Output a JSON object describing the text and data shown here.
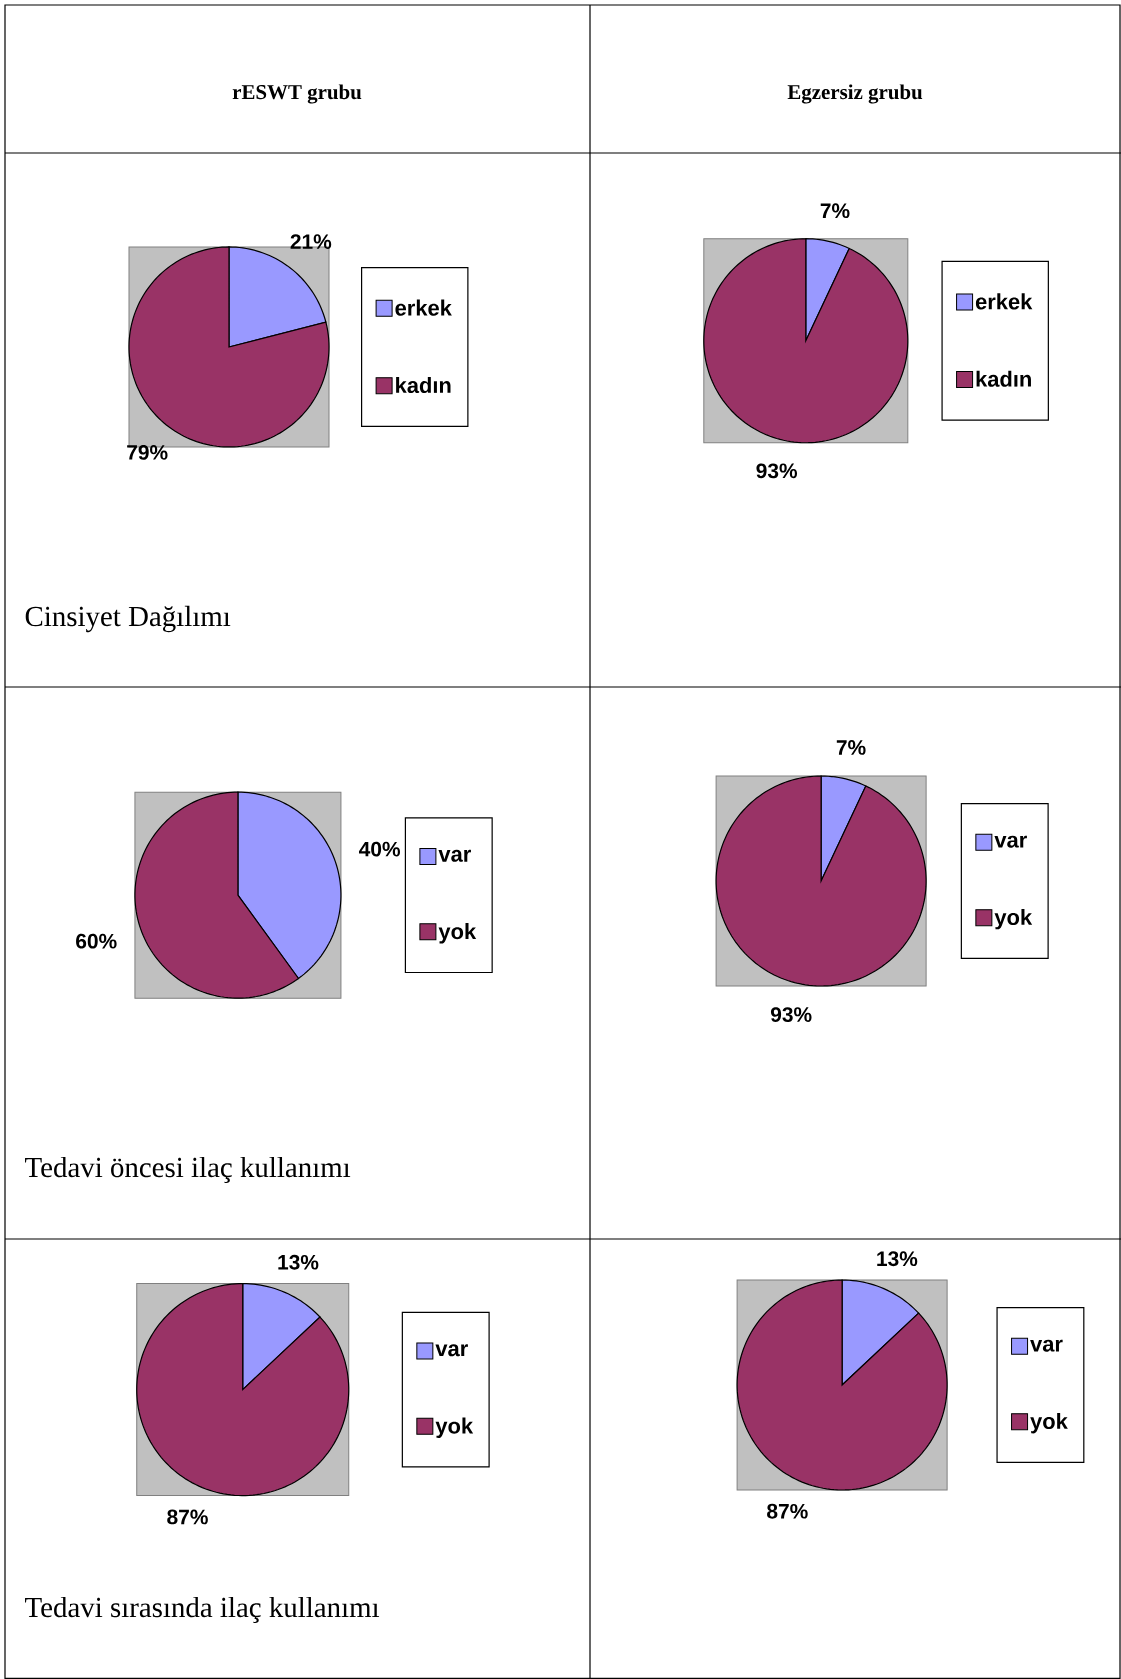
{
  "chart_data": [
    {
      "type": "pie",
      "title": "rESWT grubu",
      "annotations": [
        "Cinsiyet Dağılımı"
      ],
      "categories": [
        "erkek",
        "kadın"
      ],
      "values": [
        21,
        79
      ],
      "value_labels": [
        "21%",
        "79%"
      ],
      "colors": [
        "#9999ff",
        "#993366"
      ],
      "legend": "right"
    },
    {
      "type": "pie",
      "title": "Egzersiz grubu",
      "categories": [
        "erkek",
        "kadın"
      ],
      "values": [
        7,
        93
      ],
      "value_labels": [
        "7%",
        "93%"
      ],
      "colors": [
        "#9999ff",
        "#993366"
      ],
      "legend": "right"
    },
    {
      "type": "pie",
      "annotations": [
        "Tedavi öncesi ilaç kullanımı"
      ],
      "categories": [
        "var",
        "yok"
      ],
      "values": [
        40,
        60
      ],
      "value_labels": [
        "40%",
        "60%"
      ],
      "colors": [
        "#9999ff",
        "#993366"
      ],
      "legend": "right"
    },
    {
      "type": "pie",
      "categories": [
        "var",
        "yok"
      ],
      "values": [
        7,
        93
      ],
      "value_labels": [
        "7%",
        "93%"
      ],
      "colors": [
        "#9999ff",
        "#993366"
      ],
      "legend": "right"
    },
    {
      "type": "pie",
      "annotations": [
        "Tedavi  sırasında ilaç kullanımı"
      ],
      "categories": [
        "var",
        "yok"
      ],
      "values": [
        13,
        87
      ],
      "value_labels": [
        "13%",
        "87%"
      ],
      "colors": [
        "#9999ff",
        "#993366"
      ],
      "legend": "right"
    },
    {
      "type": "pie",
      "categories": [
        "var",
        "yok"
      ],
      "values": [
        13,
        87
      ],
      "value_labels": [
        "13%",
        "87%"
      ],
      "colors": [
        "#9999ff",
        "#993366"
      ],
      "legend": "right"
    }
  ]
}
